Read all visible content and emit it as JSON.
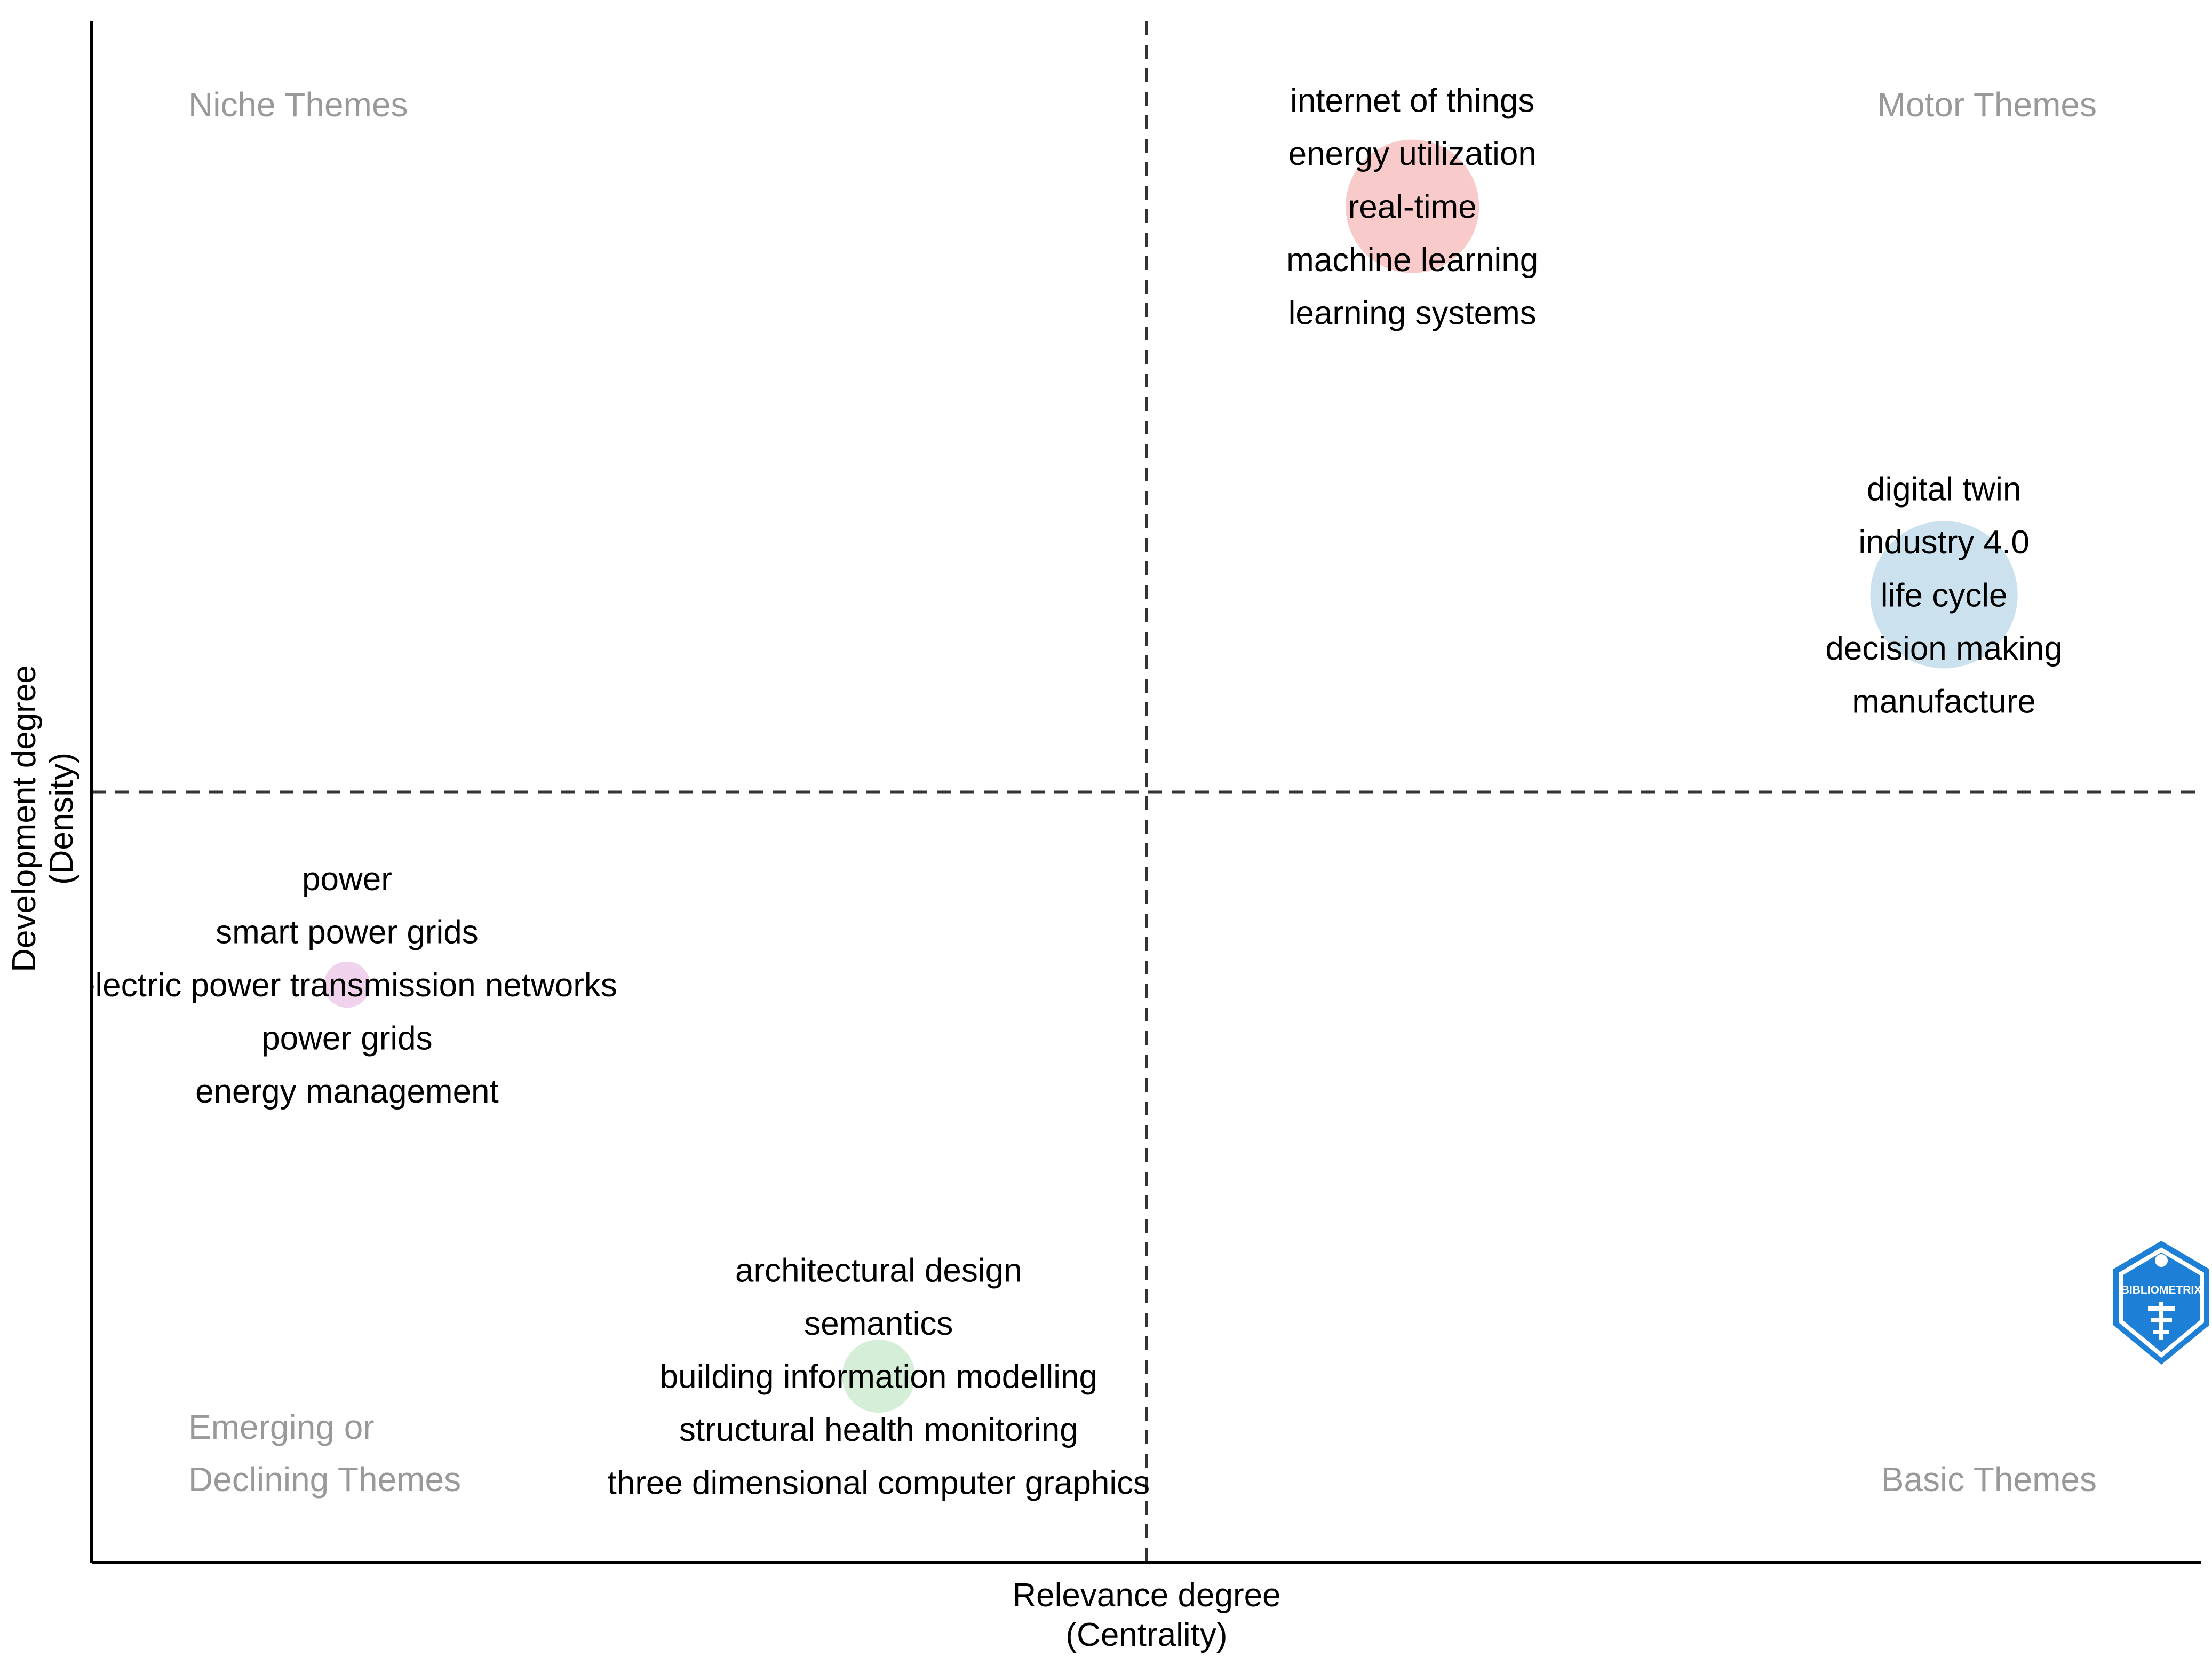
{
  "chart_data": {
    "type": "scatter",
    "title": "",
    "xlabel_lines": [
      "Relevance degree",
      "(Centrality)"
    ],
    "ylabel_lines": [
      "Development degree",
      "(Density)"
    ],
    "xlim": [
      0,
      1
    ],
    "ylim": [
      0,
      1
    ],
    "x_threshold": 0.5,
    "y_threshold": 0.5,
    "quadrant_labels": {
      "top_left": "Niche Themes",
      "top_right": "Motor Themes",
      "bottom_left_lines": [
        "Emerging or",
        "Declining Themes"
      ],
      "bottom_right": "Basic Themes"
    },
    "clusters": [
      {
        "name": "internet of things",
        "x": 0.626,
        "y": 0.88,
        "size": 1.0,
        "color": "#f4a6a6",
        "keywords": [
          "internet of things",
          "energy utilization",
          "real-time",
          "machine learning",
          "learning systems"
        ]
      },
      {
        "name": "digital twin",
        "x": 0.878,
        "y": 0.628,
        "size": 1.22,
        "color": "#a9cde3",
        "keywords": [
          "digital twin",
          "industry 4.0",
          "life cycle",
          "decision making",
          "manufacture"
        ]
      },
      {
        "name": "power",
        "x": 0.121,
        "y": 0.375,
        "size": 0.12,
        "color": "#e8b4e0",
        "keywords": [
          "power",
          "smart power grids",
          "electric power transmission networks",
          "power grids",
          "energy management"
        ]
      },
      {
        "name": "architectural design",
        "x": 0.373,
        "y": 0.121,
        "size": 0.3,
        "color": "#b7e2bd",
        "keywords": [
          "architectural design",
          "semantics",
          "building information modelling",
          "structural health monitoring",
          "three dimensional computer graphics"
        ]
      }
    ]
  },
  "logo": {
    "text": "BIBLIOMETRIX",
    "icon": "bibliometrix-logo-icon",
    "color": "#1e7fd6"
  }
}
